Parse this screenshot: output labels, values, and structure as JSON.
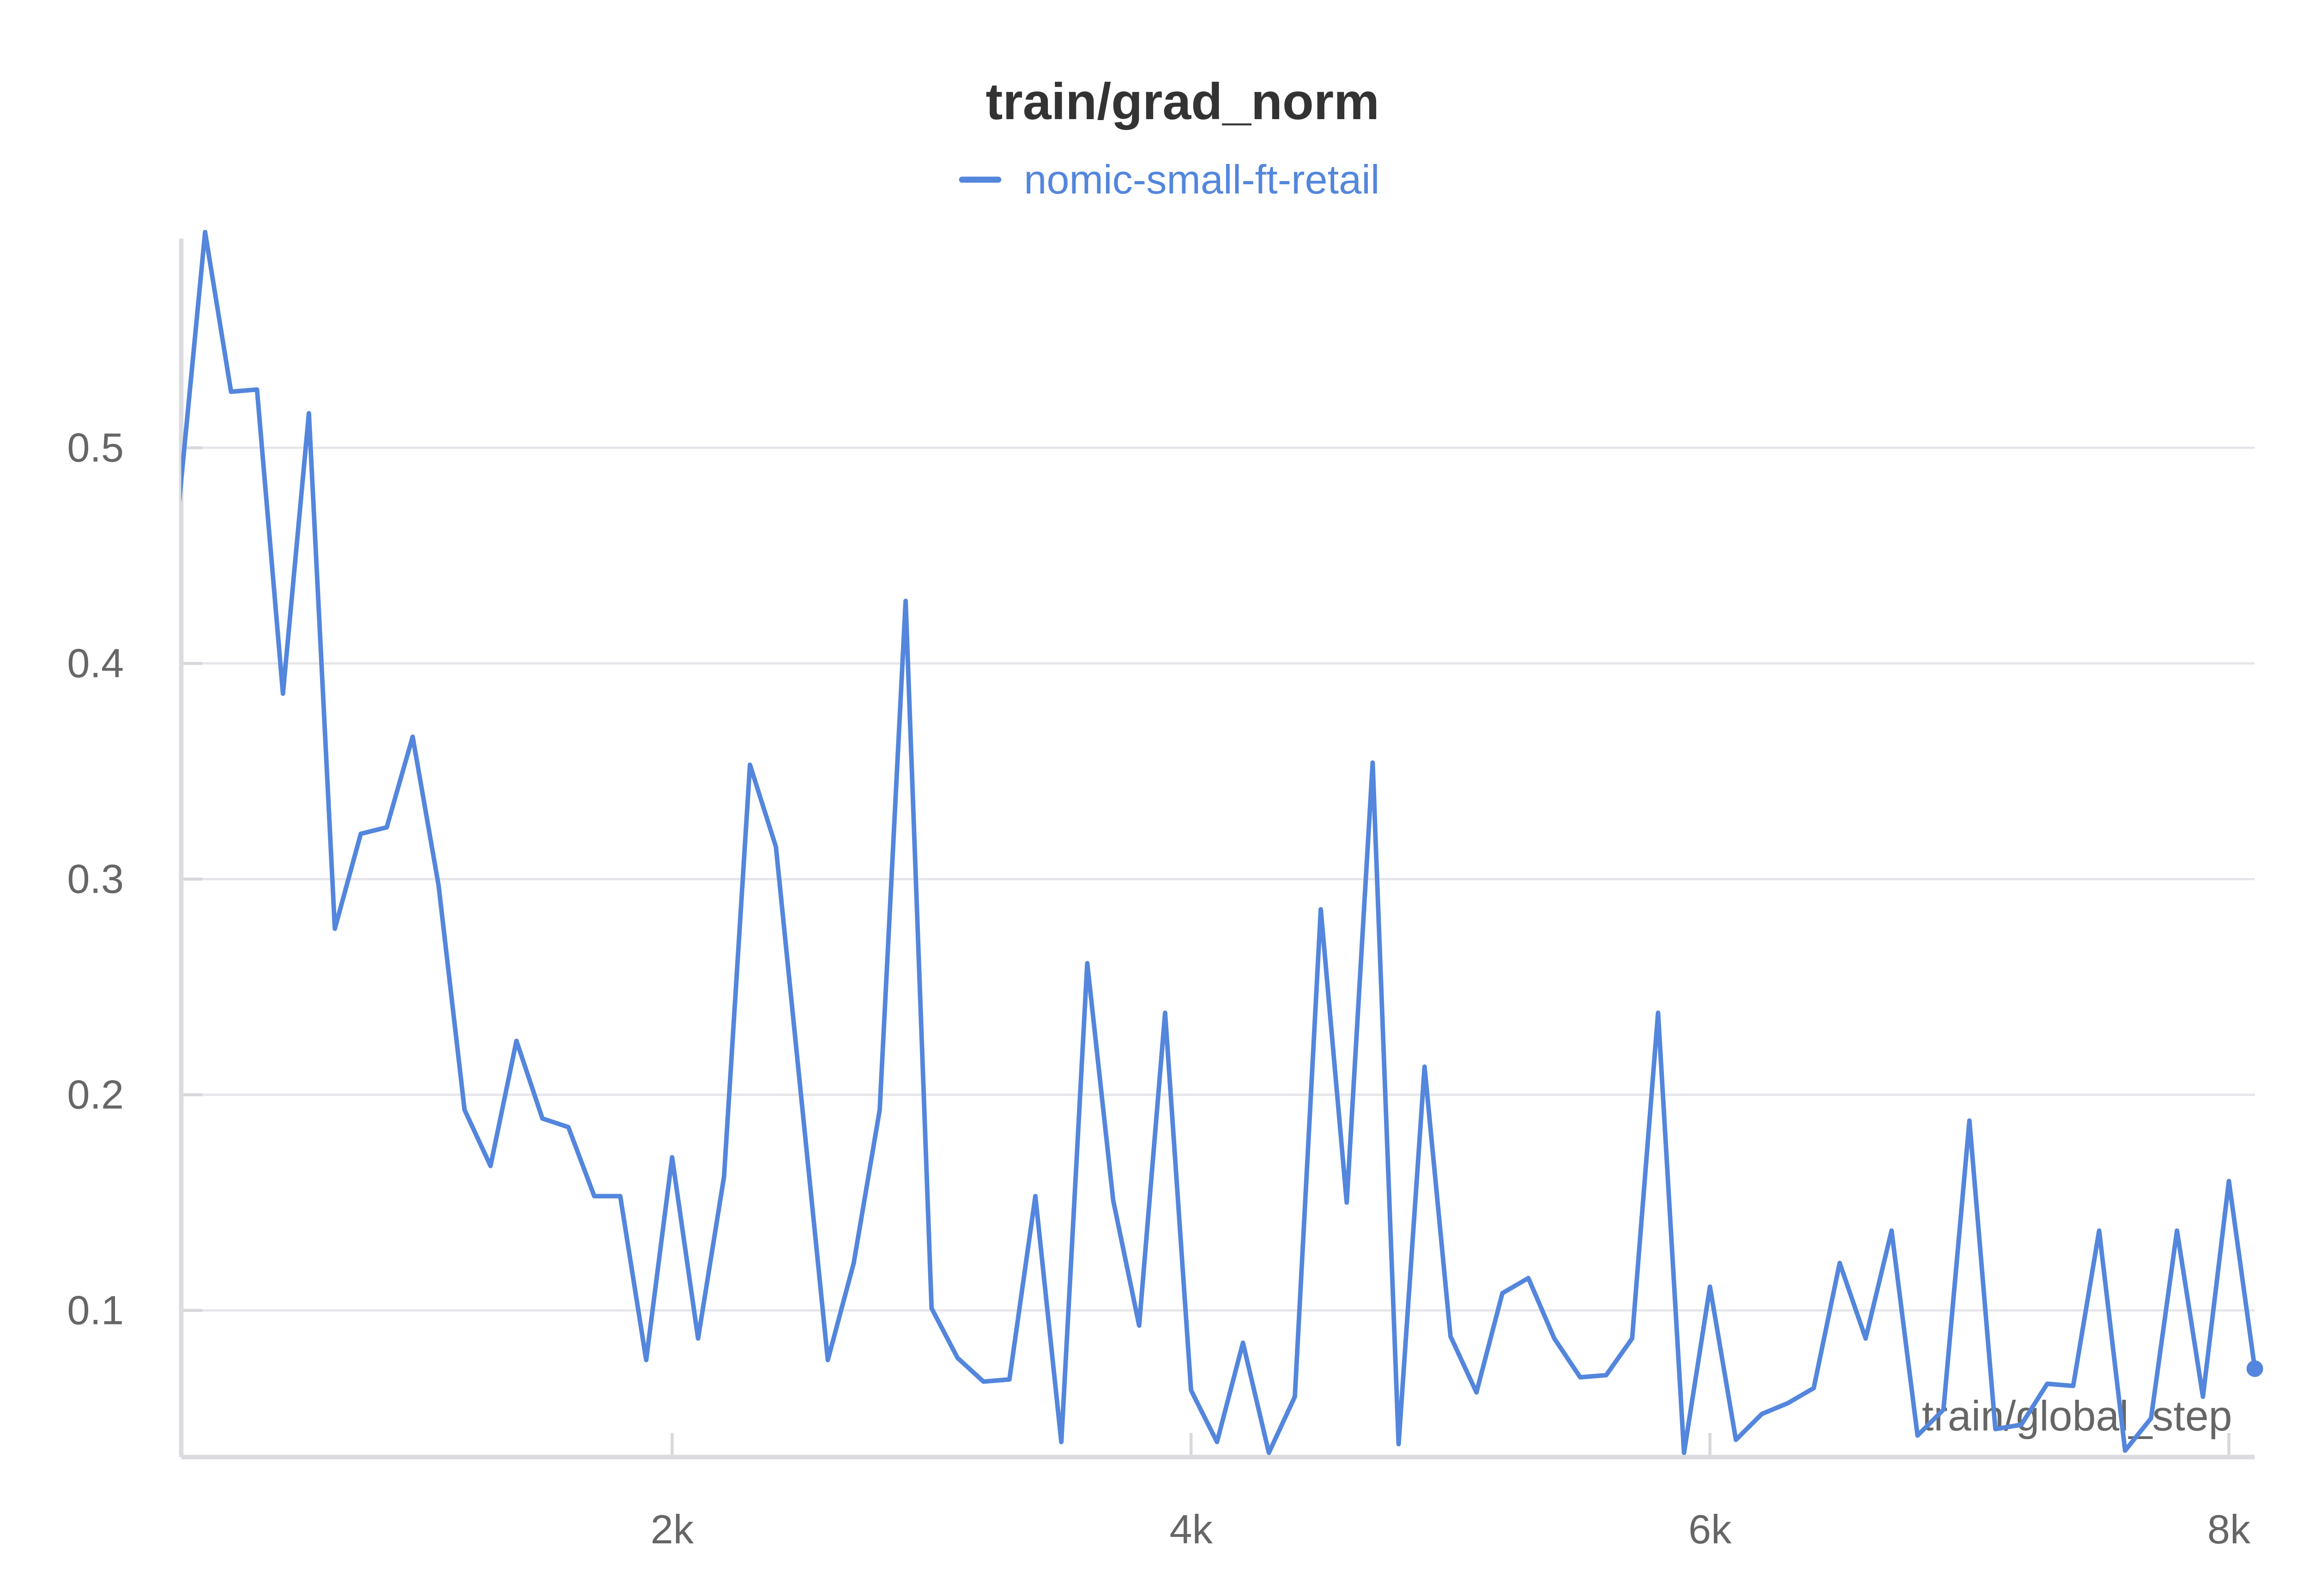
{
  "chart_data": {
    "type": "line",
    "title": "train/grad_norm",
    "x_label": "train/global_step",
    "x": [
      100,
      200,
      300,
      400,
      500,
      600,
      700,
      800,
      900,
      1000,
      1100,
      1200,
      1300,
      1400,
      1500,
      1600,
      1700,
      1800,
      1900,
      2000,
      2100,
      2200,
      2300,
      2400,
      2500,
      2600,
      2700,
      2800,
      2900,
      3000,
      3100,
      3200,
      3300,
      3400,
      3500,
      3600,
      3700,
      3800,
      3900,
      4000,
      4100,
      4200,
      4300,
      4400,
      4500,
      4600,
      4700,
      4800,
      4900,
      5000,
      5100,
      5200,
      5300,
      5400,
      5500,
      5600,
      5700,
      5800,
      5900,
      6000,
      6100,
      6200,
      6300,
      6400,
      6500,
      6600,
      6700,
      6800,
      6900,
      7000,
      7100,
      7200,
      7300,
      7400,
      7500,
      7600,
      7700,
      7800,
      7900,
      8000,
      8100
    ],
    "series": [
      {
        "name": "nomic-small-ft-retail",
        "color": "#5386dc",
        "values": [
          0.475,
          0.6,
          0.526,
          0.527,
          0.386,
          0.516,
          0.277,
          0.321,
          0.324,
          0.366,
          0.297,
          0.193,
          0.167,
          0.225,
          0.189,
          0.185,
          0.153,
          0.153,
          0.077,
          0.171,
          0.087,
          0.162,
          0.353,
          0.315,
          0.196,
          0.077,
          0.122,
          0.193,
          0.429,
          0.101,
          0.078,
          0.067,
          0.068,
          0.153,
          0.039,
          0.261,
          0.151,
          0.093,
          0.238,
          0.063,
          0.039,
          0.085,
          0.034,
          0.06,
          0.286,
          0.15,
          0.354,
          0.038,
          0.213,
          0.088,
          0.062,
          0.108,
          0.115,
          0.087,
          0.069,
          0.07,
          0.087,
          0.238,
          0.034,
          0.111,
          0.04,
          0.052,
          0.057,
          0.064,
          0.122,
          0.087,
          0.137,
          0.042,
          0.054,
          0.188,
          0.045,
          0.047,
          0.066,
          0.065,
          0.137,
          0.035,
          0.05,
          0.137,
          0.06,
          0.16,
          0.073
        ]
      }
    ],
    "xlim": [
      108,
      8100
    ],
    "xticks": [
      {
        "value": 2000,
        "label": "2k"
      },
      {
        "value": 4000,
        "label": "4k"
      },
      {
        "value": 6000,
        "label": "6k"
      },
      {
        "value": 8000,
        "label": "8k"
      }
    ],
    "ylim": [
      0.032,
      0.597
    ],
    "yticks": [
      0.1,
      0.2,
      0.3,
      0.4,
      0.5
    ],
    "grid": true,
    "legend": "top"
  }
}
